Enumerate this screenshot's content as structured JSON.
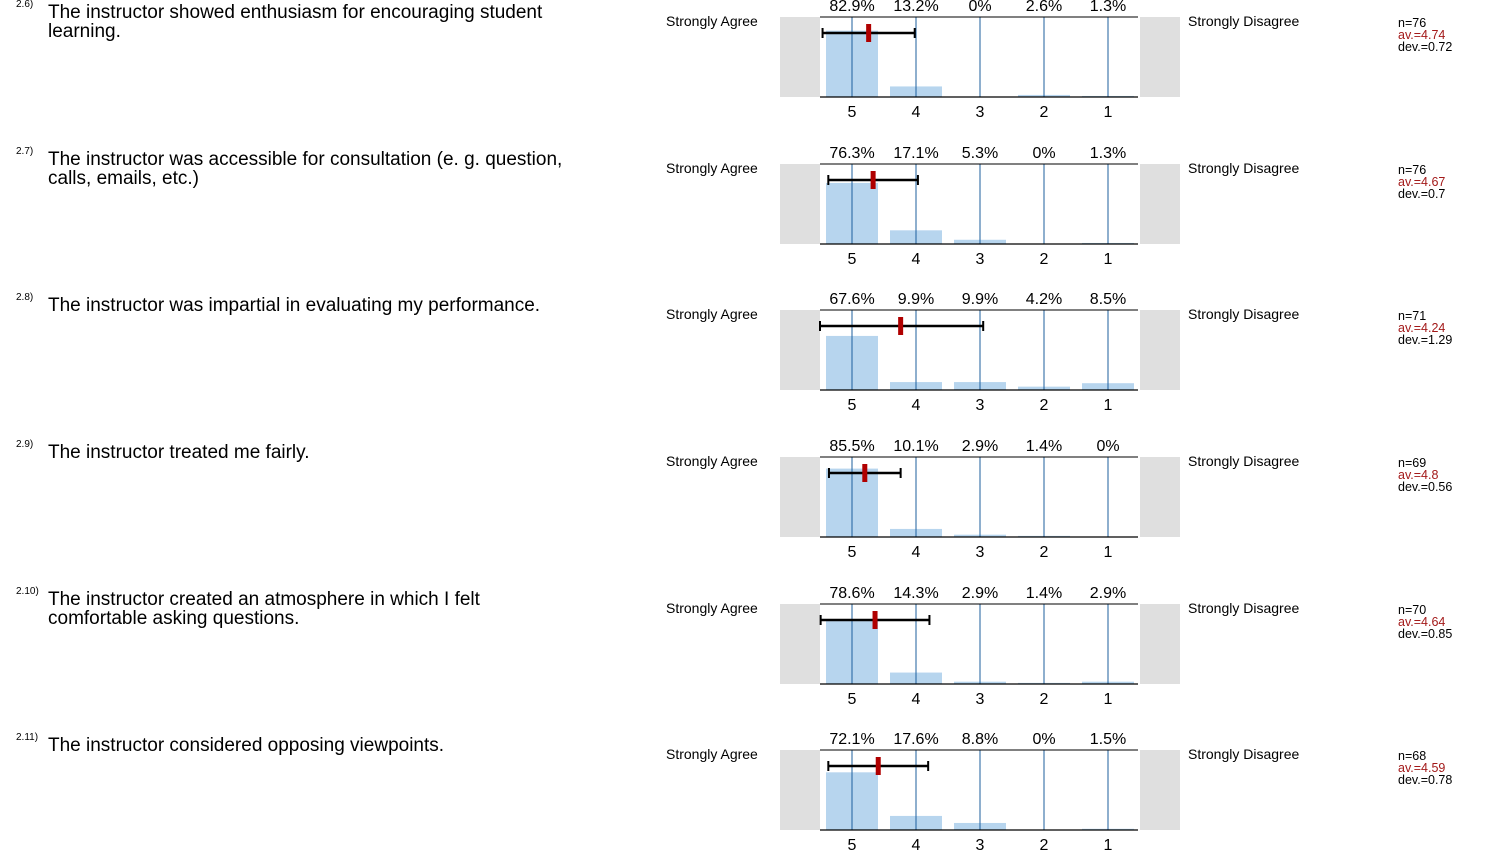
{
  "scale": {
    "left_label": "Strongly Agree",
    "right_label": "Strongly Disagree",
    "categories": [
      "5",
      "4",
      "3",
      "2",
      "1"
    ]
  },
  "questions": [
    {
      "number": "2.6)",
      "text": "The instructor showed enthusiasm for encouraging student learning.",
      "n": "n=76",
      "av": "av.=4.74",
      "dev": "dev.=0.72"
    },
    {
      "number": "2.7)",
      "text": "The instructor was accessible for consultation (e. g. question, calls, emails, etc.)",
      "n": "n=76",
      "av": "av.=4.67",
      "dev": "dev.=0.7"
    },
    {
      "number": "2.8)",
      "text": "The instructor was impartial in evaluating my performance.",
      "n": "n=71",
      "av": "av.=4.24",
      "dev": "dev.=1.29"
    },
    {
      "number": "2.9)",
      "text": "The instructor treated me fairly.",
      "n": "n=69",
      "av": "av.=4.8",
      "dev": "dev.=0.56"
    },
    {
      "number": "2.10)",
      "text": "The instructor created an atmosphere in which I felt comfortable asking questions.",
      "n": "n=70",
      "av": "av.=4.64",
      "dev": "dev.=0.85"
    },
    {
      "number": "2.11)",
      "text": "The instructor considered opposing viewpoints.",
      "n": "n=68",
      "av": "av.=4.59",
      "dev": "dev.=0.78"
    }
  ],
  "colors": {
    "bar": "#b7d5ee",
    "side_panel": "#dfdfdf",
    "grid": "#1e5f9e",
    "mean_marker": "#b00000",
    "av_text": "#a31919"
  },
  "chart_data": [
    {
      "type": "bar",
      "categories": [
        "5",
        "4",
        "3",
        "2",
        "1"
      ],
      "values": [
        82.9,
        13.2,
        0,
        2.6,
        1.3
      ],
      "labels": [
        "82.9%",
        "13.2%",
        "0%",
        "2.6%",
        "1.3%"
      ],
      "mean": 4.74,
      "dev": 0.72,
      "n": 76
    },
    {
      "type": "bar",
      "categories": [
        "5",
        "4",
        "3",
        "2",
        "1"
      ],
      "values": [
        76.3,
        17.1,
        5.3,
        0,
        1.3
      ],
      "labels": [
        "76.3%",
        "17.1%",
        "5.3%",
        "0%",
        "1.3%"
      ],
      "mean": 4.67,
      "dev": 0.7,
      "n": 76
    },
    {
      "type": "bar",
      "categories": [
        "5",
        "4",
        "3",
        "2",
        "1"
      ],
      "values": [
        67.6,
        9.9,
        9.9,
        4.2,
        8.5
      ],
      "labels": [
        "67.6%",
        "9.9%",
        "9.9%",
        "4.2%",
        "8.5%"
      ],
      "mean": 4.24,
      "dev": 1.29,
      "n": 71
    },
    {
      "type": "bar",
      "categories": [
        "5",
        "4",
        "3",
        "2",
        "1"
      ],
      "values": [
        85.5,
        10.1,
        2.9,
        1.4,
        0
      ],
      "labels": [
        "85.5%",
        "10.1%",
        "2.9%",
        "1.4%",
        "0%"
      ],
      "mean": 4.8,
      "dev": 0.56,
      "n": 69
    },
    {
      "type": "bar",
      "categories": [
        "5",
        "4",
        "3",
        "2",
        "1"
      ],
      "values": [
        78.6,
        14.3,
        2.9,
        1.4,
        2.9
      ],
      "labels": [
        "78.6%",
        "14.3%",
        "2.9%",
        "1.4%",
        "2.9%"
      ],
      "mean": 4.64,
      "dev": 0.85,
      "n": 70
    },
    {
      "type": "bar",
      "categories": [
        "5",
        "4",
        "3",
        "2",
        "1"
      ],
      "values": [
        72.1,
        17.6,
        8.8,
        0,
        1.5
      ],
      "labels": [
        "72.1%",
        "17.6%",
        "8.8%",
        "0%",
        "1.5%"
      ],
      "mean": 4.59,
      "dev": 0.78,
      "n": 68
    }
  ]
}
